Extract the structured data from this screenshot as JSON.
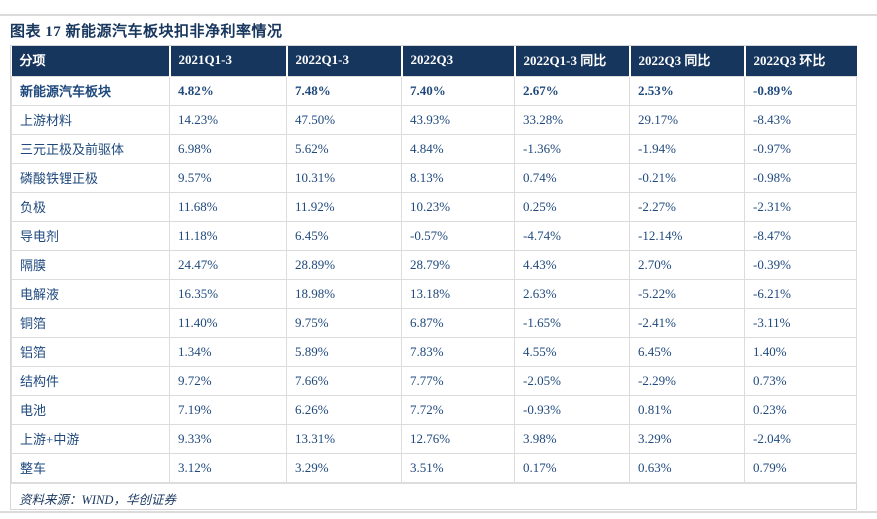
{
  "chart_data": {
    "type": "table",
    "title": "图表 17  新能源汽车板块扣非净利率情况",
    "source": "资料来源：WIND，华创证券",
    "columns": [
      "分项",
      "2021Q1-3",
      "2022Q1-3",
      "2022Q3",
      "2022Q1-3 同比",
      "2022Q3 同比",
      "2022Q3 环比"
    ],
    "rows": [
      {
        "label": "新能源汽车板块",
        "bold": true,
        "values": [
          "4.82%",
          "7.48%",
          "7.40%",
          "2.67%",
          "2.53%",
          "-0.89%"
        ]
      },
      {
        "label": "上游材料",
        "bold": false,
        "values": [
          "14.23%",
          "47.50%",
          "43.93%",
          "33.28%",
          "29.17%",
          "-8.43%"
        ]
      },
      {
        "label": "三元正极及前驱体",
        "bold": false,
        "values": [
          "6.98%",
          "5.62%",
          "4.84%",
          "-1.36%",
          "-1.94%",
          "-0.97%"
        ]
      },
      {
        "label": "磷酸铁锂正极",
        "bold": false,
        "values": [
          "9.57%",
          "10.31%",
          "8.13%",
          "0.74%",
          "-0.21%",
          "-0.98%"
        ]
      },
      {
        "label": "负极",
        "bold": false,
        "values": [
          "11.68%",
          "11.92%",
          "10.23%",
          "0.25%",
          "-2.27%",
          "-2.31%"
        ]
      },
      {
        "label": "导电剂",
        "bold": false,
        "values": [
          "11.18%",
          "6.45%",
          "-0.57%",
          "-4.74%",
          "-12.14%",
          "-8.47%"
        ]
      },
      {
        "label": "隔膜",
        "bold": false,
        "values": [
          "24.47%",
          "28.89%",
          "28.79%",
          "4.43%",
          "2.70%",
          "-0.39%"
        ]
      },
      {
        "label": "电解液",
        "bold": false,
        "values": [
          "16.35%",
          "18.98%",
          "13.18%",
          "2.63%",
          "-5.22%",
          "-6.21%"
        ]
      },
      {
        "label": "铜箔",
        "bold": false,
        "values": [
          "11.40%",
          "9.75%",
          "6.87%",
          "-1.65%",
          "-2.41%",
          "-3.11%"
        ]
      },
      {
        "label": "铝箔",
        "bold": false,
        "values": [
          "1.34%",
          "5.89%",
          "7.83%",
          "4.55%",
          "6.45%",
          "1.40%"
        ]
      },
      {
        "label": "结构件",
        "bold": false,
        "values": [
          "9.72%",
          "7.66%",
          "7.77%",
          "-2.05%",
          "-2.29%",
          "0.73%"
        ]
      },
      {
        "label": "电池",
        "bold": false,
        "values": [
          "7.19%",
          "6.26%",
          "7.72%",
          "-0.93%",
          "0.81%",
          "0.23%"
        ]
      },
      {
        "label": "上游+中游",
        "bold": false,
        "values": [
          "9.33%",
          "13.31%",
          "12.76%",
          "3.98%",
          "3.29%",
          "-2.04%"
        ]
      },
      {
        "label": "整车",
        "bold": false,
        "values": [
          "3.12%",
          "3.29%",
          "3.51%",
          "0.17%",
          "0.63%",
          "0.79%"
        ]
      }
    ],
    "layout": {
      "grid": true,
      "header_position": "top"
    }
  },
  "colors": {
    "header_bg": "#17365D",
    "header_text": "#FFFFFF",
    "body_text": "#1F497D",
    "title_text": "#17365D",
    "grid_line": "#DCDCDC",
    "page_rule": "#DBDBDB"
  }
}
